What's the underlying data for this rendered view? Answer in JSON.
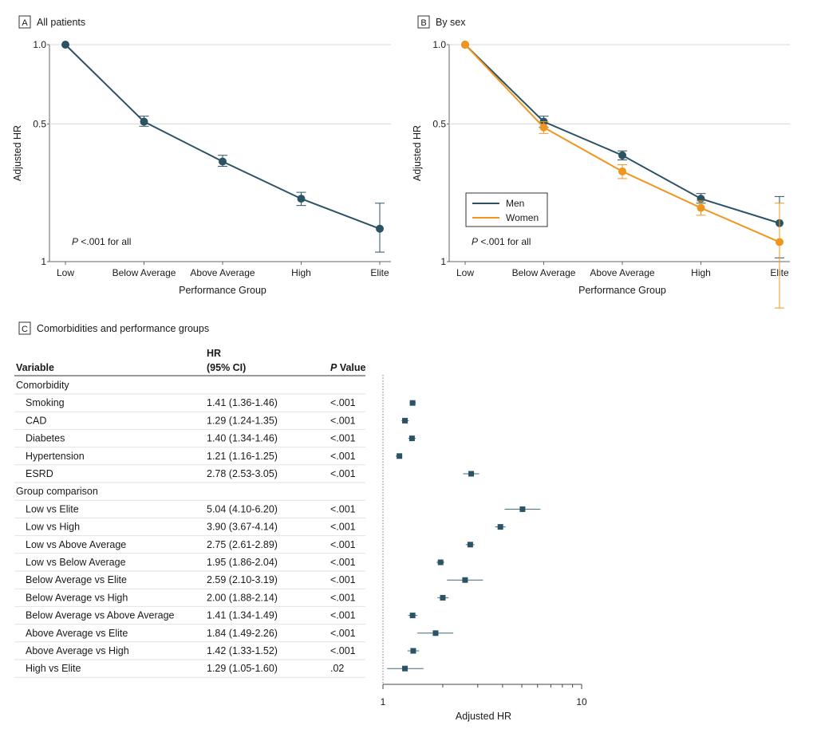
{
  "panels": {
    "a": {
      "letter": "A",
      "title": "All patients"
    },
    "b": {
      "letter": "B",
      "title": "By sex"
    },
    "c": {
      "letter": "C",
      "title": "Comorbidities and performance groups"
    }
  },
  "chart_data": [
    {
      "type": "line",
      "panel": "A",
      "title": "All patients",
      "xlabel": "Performance Group",
      "ylabel": "Adjusted HR",
      "y_scale": "log",
      "ylim": [
        0.15,
        1.0
      ],
      "y_tick_labels": [
        "1.0",
        "0.5",
        "1"
      ],
      "categories": [
        "Low",
        "Below Average",
        "Above Average",
        "High",
        "Elite"
      ],
      "series": [
        {
          "color": "#2c5364",
          "values": [
            1.0,
            0.51,
            0.36,
            0.26,
            0.2
          ],
          "ci_low": [
            1.0,
            0.49,
            0.345,
            0.245,
            0.163
          ],
          "ci_high": [
            1.0,
            0.535,
            0.38,
            0.275,
            0.25
          ]
        }
      ],
      "annotation": "P <.001 for all",
      "grid": "horizontal"
    },
    {
      "type": "line",
      "panel": "B",
      "title": "By sex",
      "xlabel": "Performance Group",
      "ylabel": "Adjusted HR",
      "y_scale": "log",
      "ylim": [
        0.15,
        1.0
      ],
      "y_tick_labels": [
        "1.0",
        "0.5",
        "1"
      ],
      "categories": [
        "Low",
        "Below Average",
        "Above Average",
        "High",
        "Elite"
      ],
      "series": [
        {
          "name": "Men",
          "color": "#2c5364",
          "values": [
            1.0,
            0.51,
            0.38,
            0.26,
            0.21
          ],
          "ci_low": [
            1.0,
            0.485,
            0.365,
            0.25,
            0.155
          ],
          "ci_high": [
            1.0,
            0.535,
            0.395,
            0.272,
            0.265
          ]
        },
        {
          "name": "Women",
          "color": "#f0961e",
          "values": [
            1.0,
            0.485,
            0.33,
            0.24,
            0.178
          ],
          "ci_low": [
            1.0,
            0.46,
            0.31,
            0.225,
            0.1
          ],
          "ci_high": [
            1.0,
            0.51,
            0.35,
            0.255,
            0.25
          ]
        }
      ],
      "annotation": "P <.001 for all",
      "legend": "bottom-left",
      "grid": "horizontal"
    },
    {
      "type": "forest",
      "panel": "C",
      "title": "Comorbidities and performance groups",
      "xlabel": "Adjusted HR",
      "x_scale": "log",
      "xlim": [
        1,
        30
      ],
      "x_ticks": [
        1,
        10
      ],
      "headers": {
        "variable": "Variable",
        "hr_line1": "HR",
        "hr_line2": "(95% CI)",
        "p_italic": "P",
        "p_rest": " Value"
      },
      "sections": [
        {
          "title": "Comorbidity",
          "rows": [
            {
              "label": "Smoking",
              "hr_text": "1.41 (1.36-1.46)",
              "p": "<.001",
              "hr": 1.41,
              "lo": 1.36,
              "hi": 1.46
            },
            {
              "label": "CAD",
              "hr_text": "1.29 (1.24-1.35)",
              "p": "<.001",
              "hr": 1.29,
              "lo": 1.24,
              "hi": 1.35
            },
            {
              "label": "Diabetes",
              "hr_text": "1.40 (1.34-1.46)",
              "p": "<.001",
              "hr": 1.4,
              "lo": 1.34,
              "hi": 1.46
            },
            {
              "label": "Hypertension",
              "hr_text": "1.21 (1.16-1.25)",
              "p": "<.001",
              "hr": 1.21,
              "lo": 1.16,
              "hi": 1.25
            },
            {
              "label": "ESRD",
              "hr_text": "2.78 (2.53-3.05)",
              "p": "<.001",
              "hr": 2.78,
              "lo": 2.53,
              "hi": 3.05
            }
          ]
        },
        {
          "title": "Group comparison",
          "rows": [
            {
              "label": "Low vs Elite",
              "hr_text": "5.04 (4.10-6.20)",
              "p": "<.001",
              "hr": 5.04,
              "lo": 4.1,
              "hi": 6.2
            },
            {
              "label": "Low vs High",
              "hr_text": "3.90 (3.67-4.14)",
              "p": "<.001",
              "hr": 3.9,
              "lo": 3.67,
              "hi": 4.14
            },
            {
              "label": "Low vs Above Average",
              "hr_text": "2.75 (2.61-2.89)",
              "p": "<.001",
              "hr": 2.75,
              "lo": 2.61,
              "hi": 2.89
            },
            {
              "label": "Low vs Below Average",
              "hr_text": "1.95 (1.86-2.04)",
              "p": "<.001",
              "hr": 1.95,
              "lo": 1.86,
              "hi": 2.04
            },
            {
              "label": "Below Average vs Elite",
              "hr_text": "2.59 (2.10-3.19)",
              "p": "<.001",
              "hr": 2.59,
              "lo": 2.1,
              "hi": 3.19
            },
            {
              "label": "Below Average vs High",
              "hr_text": "2.00 (1.88-2.14)",
              "p": "<.001",
              "hr": 2.0,
              "lo": 1.88,
              "hi": 2.14
            },
            {
              "label": "Below Average vs Above Average",
              "hr_text": "1.41 (1.34-1.49)",
              "p": "<.001",
              "hr": 1.41,
              "lo": 1.34,
              "hi": 1.49
            },
            {
              "label": "Above Average vs Elite",
              "hr_text": "1.84 (1.49-2.26)",
              "p": "<.001",
              "hr": 1.84,
              "lo": 1.49,
              "hi": 2.26
            },
            {
              "label": "Above Average vs High",
              "hr_text": "1.42 (1.33-1.52)",
              "p": "<.001",
              "hr": 1.42,
              "lo": 1.33,
              "hi": 1.52
            },
            {
              "label": "High vs Elite",
              "hr_text": "1.29 (1.05-1.60)",
              "p": ".02",
              "hr": 1.29,
              "lo": 1.05,
              "hi": 1.6
            }
          ]
        }
      ]
    }
  ]
}
